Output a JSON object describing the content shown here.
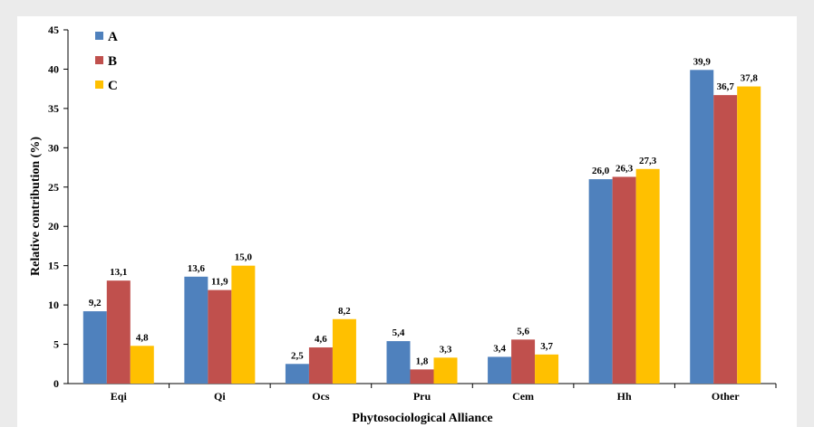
{
  "chart_data": {
    "type": "bar",
    "title": "",
    "xlabel": "Phytosociological Alliance",
    "ylabel": "Relative contribution (%)",
    "ylim": [
      0,
      45
    ],
    "yticks": [
      "0",
      "5",
      "10",
      "15",
      "20",
      "25",
      "30",
      "35",
      "40",
      "45"
    ],
    "categories": [
      "Eqi",
      "Qi",
      "Ocs",
      "Pru",
      "Cem",
      "Hh",
      "Other"
    ],
    "series": [
      {
        "name": "A",
        "color": "#4f81bd",
        "values": [
          9.2,
          13.6,
          2.5,
          5.4,
          3.4,
          26.0,
          39.9
        ],
        "labels": [
          "9,2",
          "13,6",
          "2,5",
          "5,4",
          "3,4",
          "26,0",
          "39,9"
        ]
      },
      {
        "name": "B",
        "color": "#c0504d",
        "values": [
          13.1,
          11.9,
          4.6,
          1.8,
          5.6,
          26.3,
          36.7
        ],
        "labels": [
          "13,1",
          "11,9",
          "4,6",
          "1,8",
          "5,6",
          "26,3",
          "36,7"
        ]
      },
      {
        "name": "C",
        "color": "#ffc000",
        "values": [
          4.8,
          15.0,
          8.2,
          3.3,
          3.7,
          27.3,
          37.8
        ],
        "labels": [
          "4,8",
          "15,0",
          "8,2",
          "3,3",
          "3,7",
          "27,3",
          "37,8"
        ]
      }
    ],
    "legend_position": "top-left",
    "grid": false
  }
}
